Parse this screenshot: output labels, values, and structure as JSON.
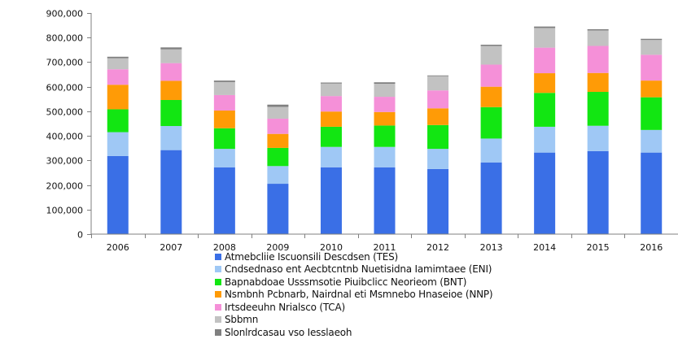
{
  "chart_data": {
    "type": "bar",
    "stacked": true,
    "categories": [
      "2006",
      "2007",
      "2008",
      "2009",
      "2010",
      "2011",
      "2012",
      "2013",
      "2014",
      "2015",
      "2016"
    ],
    "ylim": [
      0,
      900000
    ],
    "yticks": [
      0,
      100000,
      200000,
      300000,
      400000,
      500000,
      600000,
      700000,
      800000,
      900000
    ],
    "ytick_labels": [
      "0",
      "100,000",
      "200,000",
      "300,000",
      "400,000",
      "500,000",
      "600,000",
      "700,000",
      "800,000",
      "900,000"
    ],
    "grid": false,
    "legend_position": "bottom",
    "series": [
      {
        "name": "Atmebcliie Iscuonsili Descdsen (TES)",
        "color": "#3a6fe6",
        "values": [
          318000,
          342000,
          272000,
          205000,
          272000,
          272000,
          265000,
          292000,
          332000,
          338000,
          332000
        ]
      },
      {
        "name": "Cndsednaso ent Aecbtcntnb Nuetisidna Iamimtaee (ENI)",
        "color": "#9fc8f5",
        "values": [
          97000,
          98000,
          75000,
          72000,
          83000,
          83000,
          82000,
          97000,
          105000,
          103000,
          92000
        ]
      },
      {
        "name": "Bapnabdoae Usssmsotie Piuibclicc Neorieom (BNT)",
        "color": "#12e612",
        "values": [
          93000,
          106000,
          84000,
          74000,
          82000,
          87000,
          97000,
          128000,
          138000,
          138000,
          133000
        ]
      },
      {
        "name": "Nsmbnh Pcbnarb, Nairdnal eti Msmnebo Hnaseioe (NNP)",
        "color": "#ff9b06",
        "values": [
          100000,
          78000,
          72000,
          57000,
          62000,
          55000,
          68000,
          83000,
          80000,
          77000,
          68000
        ]
      },
      {
        "name": "Irtsdeeuhn Nrialsco (TCA)",
        "color": "#f590d8",
        "values": [
          63000,
          72000,
          63000,
          62000,
          63000,
          62000,
          73000,
          90000,
          104000,
          110000,
          105000
        ]
      },
      {
        "name": "Sbbmn",
        "color": "#c2c2c2",
        "values": [
          45000,
          56000,
          53000,
          48000,
          51000,
          53000,
          58000,
          76000,
          80000,
          63000,
          60000
        ]
      },
      {
        "name": "Slonlrdcasau vso Iesslaeoh",
        "color": "#808080",
        "values": [
          6000,
          8000,
          6000,
          9000,
          4000,
          6000,
          3000,
          5000,
          6000,
          5000,
          5000
        ]
      }
    ]
  }
}
